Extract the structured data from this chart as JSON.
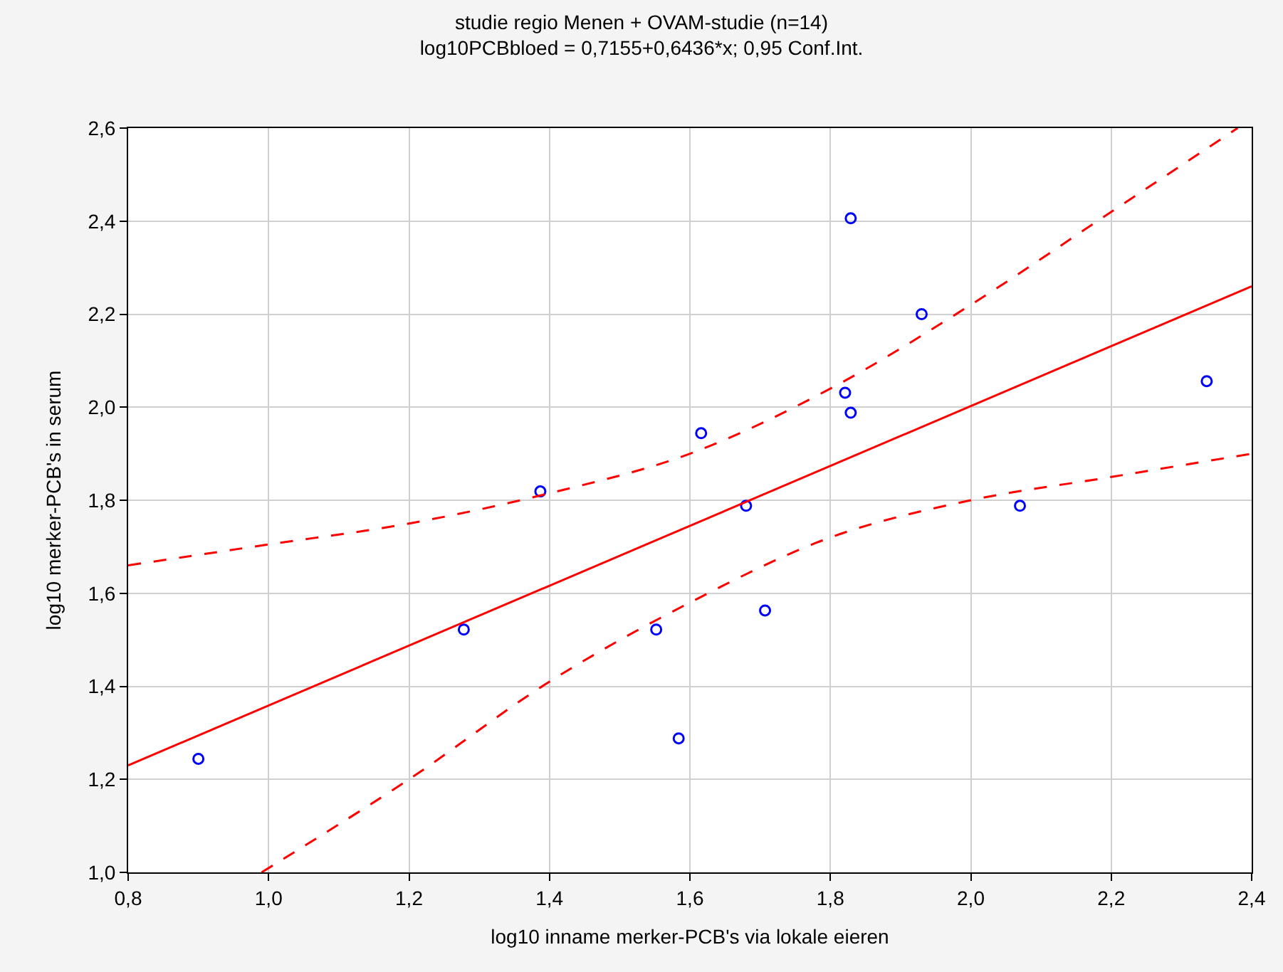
{
  "chart_data": {
    "type": "scatter",
    "title": "studie regio Menen + OVAM-studie (n=14)",
    "subtitle": "log10PCBbloed = 0,7155+0,6436*x; 0,95 Conf.Int.",
    "xlabel": "log10 inname merker-PCB's via lokale eieren",
    "ylabel": "log10 merker-PCB's in serum",
    "x": [
      0.9,
      1.278,
      1.387,
      1.552,
      1.584,
      1.616,
      1.68,
      1.707,
      1.821,
      1.829,
      1.829,
      1.93,
      2.07,
      2.336
    ],
    "series": [
      {
        "color": "#0000ff",
        "marker": "circle",
        "values": [
          1.244,
          1.522,
          1.819,
          1.522,
          1.288,
          1.944,
          1.788,
          1.563,
          2.031,
          1.988,
          2.406,
          2.2,
          1.788,
          2.056
        ]
      },
      {
        "type": "line",
        "color": "#ff0000",
        "marker": "none",
        "line_style": "solid",
        "x": [
          0.8,
          2.4
        ],
        "values": [
          1.23,
          2.26
        ]
      },
      {
        "type": "line",
        "color": "#ff0000",
        "marker": "none",
        "line_style": "dashed",
        "x": [
          0.8,
          1.0,
          1.2,
          1.4,
          1.6,
          1.8,
          2.0,
          2.2,
          2.38
        ],
        "values": [
          1.66,
          1.705,
          1.75,
          1.815,
          1.9,
          2.04,
          2.22,
          2.42,
          2.6
        ]
      },
      {
        "type": "line",
        "color": "#ff0000",
        "marker": "none",
        "line_style": "dashed",
        "x": [
          0.99,
          1.2,
          1.4,
          1.6,
          1.8,
          2.0,
          2.2,
          2.4
        ],
        "values": [
          1.0,
          1.2,
          1.41,
          1.58,
          1.72,
          1.8,
          1.85,
          1.9
        ]
      }
    ],
    "xlim": [
      0.8,
      2.4
    ],
    "ylim": [
      1.0,
      2.6
    ],
    "xticks": [
      {
        "value": 0.8,
        "label": "0,8"
      },
      {
        "value": 1.0,
        "label": "1,0"
      },
      {
        "value": 1.2,
        "label": "1,2"
      },
      {
        "value": 1.4,
        "label": "1,4"
      },
      {
        "value": 1.6,
        "label": "1,6"
      },
      {
        "value": 1.8,
        "label": "1,8"
      },
      {
        "value": 2.0,
        "label": "2,0"
      },
      {
        "value": 2.2,
        "label": "2,2"
      },
      {
        "value": 2.4,
        "label": "2,4"
      }
    ],
    "yticks": [
      {
        "value": 1.0,
        "label": "1,0"
      },
      {
        "value": 1.2,
        "label": "1,2"
      },
      {
        "value": 1.4,
        "label": "1,4"
      },
      {
        "value": 1.6,
        "label": "1,6"
      },
      {
        "value": 1.8,
        "label": "1,8"
      },
      {
        "value": 2.0,
        "label": "2,0"
      },
      {
        "value": 2.2,
        "label": "2,2"
      },
      {
        "value": 2.4,
        "label": "2,4"
      },
      {
        "value": 2.6,
        "label": "2,6"
      }
    ],
    "grid": true
  }
}
